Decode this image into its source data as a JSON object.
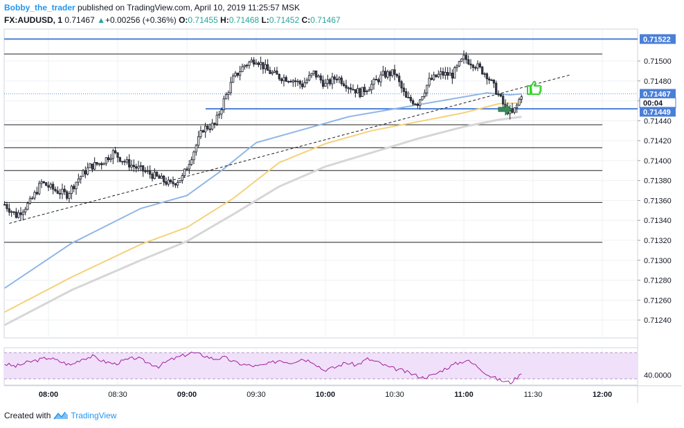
{
  "header": {
    "user": "Bobby_the_trader",
    "published_text": "published on TradingView.com, April 10, 2019 11:25:57 MSK",
    "symbol": "FX:AUDUSD, 1",
    "last_price": "0.71467",
    "change": "+0.00256 (+0.36%)",
    "change_arrow": "▲",
    "o_label": "O:",
    "o_value": "0.71455",
    "h_label": "H:",
    "h_value": "0.71468",
    "l_label": "L:",
    "l_value": "0.71452",
    "c_label": "C:",
    "c_value": "0.71467"
  },
  "footer": {
    "created_with": "Created with",
    "brand": "TradingView"
  },
  "colors": {
    "up_candle": "#ffffff",
    "down_candle": "#434651",
    "ma_fast": "#90b6e6",
    "ma_mid": "#f4d27a",
    "ma_slow": "#d6d6d6",
    "hline": "#4a7fd8",
    "rsi_band": "#f0e0fa",
    "rsi_line": "#a01d9c",
    "thumb_up": "#35d12c",
    "arrow": "#3a8a5a"
  },
  "chart_data": {
    "type": "candlestick",
    "x_ticks": [
      "08:00",
      "08:30",
      "09:00",
      "09:30",
      "10:00",
      "10:30",
      "11:00",
      "11:30",
      "12:00"
    ],
    "x_tick_bold": [
      true,
      false,
      true,
      false,
      true,
      false,
      true,
      false,
      true
    ],
    "y_ticks": [
      "0.71500",
      "0.71480",
      "0.71460",
      "0.71440",
      "0.71420",
      "0.71400",
      "0.71380",
      "0.71360",
      "0.71340",
      "0.71320",
      "0.71300",
      "0.71280",
      "0.71260",
      "0.71240"
    ],
    "ylim": [
      0.71222,
      0.71532
    ],
    "price_labels": [
      {
        "text": "0.71522",
        "value": 0.71522
      },
      {
        "text": "0.71467",
        "value": 0.71467
      },
      {
        "text": "00:04",
        "value": 0.71458
      },
      {
        "text": "0.71449",
        "value": 0.71449
      }
    ],
    "horizontal_levels": [
      0.71507,
      0.71436,
      0.71413,
      0.7139,
      0.71358,
      0.71318
    ],
    "blue_levels": [
      0.71522,
      0.71452
    ],
    "trendline": {
      "from": [
        "07:43",
        0.71337
      ],
      "to": [
        "11:46",
        0.71486
      ]
    },
    "ma_fast_points": [
      [
        "07:41",
        0.71272
      ],
      [
        "08:10",
        0.71317
      ],
      [
        "08:40",
        0.71352
      ],
      [
        "09:00",
        0.71365
      ],
      [
        "09:15",
        0.7139
      ],
      [
        "09:30",
        0.71418
      ],
      [
        "09:50",
        0.71431
      ],
      [
        "10:10",
        0.71444
      ],
      [
        "10:30",
        0.71452
      ],
      [
        "10:50",
        0.7146
      ],
      [
        "11:10",
        0.71468
      ],
      [
        "11:20",
        0.71466
      ],
      [
        "11:25",
        0.71467
      ]
    ],
    "ma_mid_points": [
      [
        "07:41",
        0.71248
      ],
      [
        "08:10",
        0.71283
      ],
      [
        "08:40",
        0.71316
      ],
      [
        "09:00",
        0.71333
      ],
      [
        "09:20",
        0.71362
      ],
      [
        "09:40",
        0.71398
      ],
      [
        "10:00",
        0.71417
      ],
      [
        "10:20",
        0.7143
      ],
      [
        "10:40",
        0.71439
      ],
      [
        "11:00",
        0.71448
      ],
      [
        "11:15",
        0.71457
      ],
      [
        "11:25",
        0.71458
      ]
    ],
    "ma_slow_points": [
      [
        "07:41",
        0.71235
      ],
      [
        "08:10",
        0.7127
      ],
      [
        "08:40",
        0.713
      ],
      [
        "09:00",
        0.71319
      ],
      [
        "09:20",
        0.71346
      ],
      [
        "09:40",
        0.71374
      ],
      [
        "10:00",
        0.71394
      ],
      [
        "10:20",
        0.71408
      ],
      [
        "10:40",
        0.71422
      ],
      [
        "11:00",
        0.71434
      ],
      [
        "11:15",
        0.71441
      ],
      [
        "11:25",
        0.71444
      ]
    ],
    "candle_path": [
      [
        "07:41",
        0.71356
      ],
      [
        "07:46",
        0.71345
      ],
      [
        "07:52",
        0.71358
      ],
      [
        "07:57",
        0.71378
      ],
      [
        "08:03",
        0.7137
      ],
      [
        "08:08",
        0.71366
      ],
      [
        "08:13",
        0.71382
      ],
      [
        "08:18",
        0.71394
      ],
      [
        "08:23",
        0.71398
      ],
      [
        "08:28",
        0.71408
      ],
      [
        "08:33",
        0.71399
      ],
      [
        "08:38",
        0.71393
      ],
      [
        "08:43",
        0.71388
      ],
      [
        "08:48",
        0.71382
      ],
      [
        "08:53",
        0.71376
      ],
      [
        "08:58",
        0.71383
      ],
      [
        "09:03",
        0.7141
      ],
      [
        "09:07",
        0.71432
      ],
      [
        "09:12",
        0.71436
      ],
      [
        "09:16",
        0.7146
      ],
      [
        "09:20",
        0.71482
      ],
      [
        "09:25",
        0.71496
      ],
      [
        "09:30",
        0.71502
      ],
      [
        "09:35",
        0.7149
      ],
      [
        "09:40",
        0.71484
      ],
      [
        "09:45",
        0.71482
      ],
      [
        "09:50",
        0.71476
      ],
      [
        "09:55",
        0.71488
      ],
      [
        "10:00",
        0.71476
      ],
      [
        "10:05",
        0.71484
      ],
      [
        "10:10",
        0.71475
      ],
      [
        "10:15",
        0.71468
      ],
      [
        "10:20",
        0.71476
      ],
      [
        "10:25",
        0.71486
      ],
      [
        "10:30",
        0.71488
      ],
      [
        "10:35",
        0.71462
      ],
      [
        "10:40",
        0.71458
      ],
      [
        "10:45",
        0.7148
      ],
      [
        "10:50",
        0.71487
      ],
      [
        "10:55",
        0.71486
      ],
      [
        "11:00",
        0.71503
      ],
      [
        "11:05",
        0.71496
      ],
      [
        "11:10",
        0.71486
      ],
      [
        "11:15",
        0.71466
      ],
      [
        "11:18",
        0.71452
      ],
      [
        "11:21",
        0.71447
      ],
      [
        "11:23",
        0.71455
      ],
      [
        "11:25",
        0.71467
      ]
    ],
    "rsi": {
      "tick": "40.0000",
      "tick_value": 40,
      "ylim": [
        32,
        62
      ],
      "band": [
        37,
        58
      ],
      "values": [
        49,
        47,
        50,
        52,
        54,
        51,
        48,
        53,
        55,
        51,
        49,
        52,
        54,
        50,
        47,
        52,
        55,
        58,
        56,
        53,
        54,
        50,
        48,
        47,
        49,
        52,
        50,
        53,
        51,
        44,
        46,
        50,
        48,
        53,
        50,
        46,
        44,
        41,
        38,
        40,
        45,
        49,
        52,
        47,
        40,
        36,
        34,
        41
      ]
    }
  }
}
